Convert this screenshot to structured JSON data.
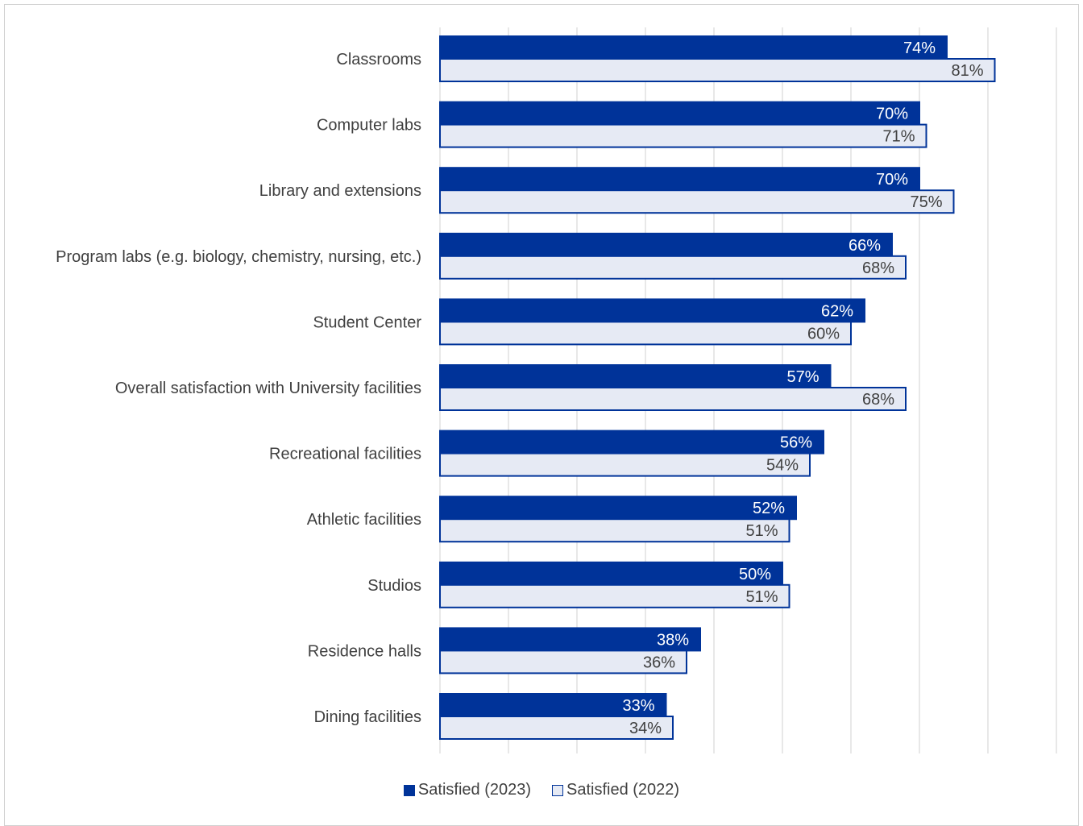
{
  "chart_data": {
    "type": "bar",
    "orientation": "horizontal",
    "categories": [
      "Classrooms",
      "Computer labs",
      "Library and extensions",
      "Program labs (e.g. biology, chemistry, nursing, etc.)",
      "Student Center",
      "Overall satisfaction with University facilities",
      "Recreational facilities",
      "Athletic facilities",
      "Studios",
      "Residence halls",
      "Dining facilities"
    ],
    "series": [
      {
        "name": "Satisfied (2023)",
        "values": [
          74,
          70,
          70,
          66,
          62,
          57,
          56,
          52,
          50,
          38,
          33
        ],
        "labels": [
          "74%",
          "70%",
          "70%",
          "66%",
          "62%",
          "57%",
          "56%",
          "52%",
          "50%",
          "38%",
          "33%"
        ],
        "fill": "#003399",
        "stroke": "#003399",
        "label_color": "#ffffff"
      },
      {
        "name": "Satisfied (2022)",
        "values": [
          81,
          71,
          75,
          68,
          60,
          68,
          54,
          51,
          51,
          36,
          34
        ],
        "labels": [
          "81%",
          "71%",
          "75%",
          "68%",
          "60%",
          "68%",
          "54%",
          "51%",
          "51%",
          "36%",
          "34%"
        ],
        "fill": "#e6eaf4",
        "stroke": "#003399",
        "label_color": "#404040"
      }
    ],
    "xlim": [
      0,
      90
    ],
    "grid": true,
    "legend": "bottom",
    "title": "",
    "xlabel": "",
    "ylabel": ""
  }
}
